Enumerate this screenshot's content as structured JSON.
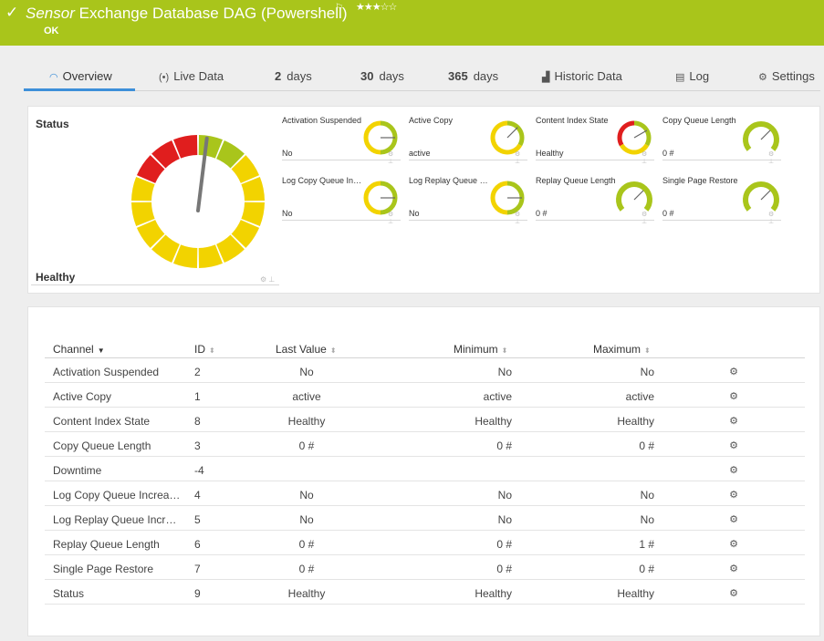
{
  "header": {
    "kind": "Sensor",
    "name": "Exchange Database DAG (Powershell)",
    "stars": "★★★☆☆",
    "status": "OK",
    "bg_color": "#a9c51b"
  },
  "tabs": [
    {
      "label": "Overview",
      "icon": "gauge-icon"
    },
    {
      "label": "Live Data",
      "icon": "broadcast-icon"
    },
    {
      "num": "2",
      "label": "days"
    },
    {
      "num": "30",
      "label": "days"
    },
    {
      "num": "365",
      "label": "days"
    },
    {
      "label": "Historic Data",
      "icon": "chart-icon"
    },
    {
      "label": "Log",
      "icon": "list-icon"
    },
    {
      "label": "Settings",
      "icon": "gear-icon"
    }
  ],
  "status_panel": {
    "label": "Status",
    "value": "Healthy"
  },
  "gauges": [
    {
      "name": "Activation Suspended",
      "value": "No",
      "type": "half"
    },
    {
      "name": "Active Copy",
      "value": "active",
      "type": "mid"
    },
    {
      "name": "Content Index State",
      "value": "Healthy",
      "type": "redyellow"
    },
    {
      "name": "Copy Queue Length",
      "value": "0 #",
      "type": "green"
    },
    {
      "name": "Log Copy Queue Increasing",
      "value": "No",
      "type": "half"
    },
    {
      "name": "Log Replay Queue Increasing",
      "value": "No",
      "type": "half"
    },
    {
      "name": "Replay Queue Length",
      "value": "0 #",
      "type": "green"
    },
    {
      "name": "Single Page Restore",
      "value": "0 #",
      "type": "green"
    }
  ],
  "table": {
    "headers": {
      "channel": "Channel",
      "id": "ID",
      "last": "Last Value",
      "min": "Minimum",
      "max": "Maximum"
    },
    "rows": [
      {
        "channel": "Activation Suspended",
        "id": "2",
        "last": "No",
        "min": "No",
        "max": "No"
      },
      {
        "channel": "Active Copy",
        "id": "1",
        "last": "active",
        "min": "active",
        "max": "active"
      },
      {
        "channel": "Content Index State",
        "id": "8",
        "last": "Healthy",
        "min": "Healthy",
        "max": "Healthy"
      },
      {
        "channel": "Copy Queue Length",
        "id": "3",
        "last": "0 #",
        "min": "0 #",
        "max": "0 #"
      },
      {
        "channel": "Downtime",
        "id": "-4",
        "last": "",
        "min": "",
        "max": ""
      },
      {
        "channel": "Log Copy Queue Increasing",
        "id": "4",
        "last": "No",
        "min": "No",
        "max": "No"
      },
      {
        "channel": "Log Replay Queue Increasing",
        "id": "5",
        "last": "No",
        "min": "No",
        "max": "No"
      },
      {
        "channel": "Replay Queue Length",
        "id": "6",
        "last": "0 #",
        "min": "0 #",
        "max": "1 #"
      },
      {
        "channel": "Single Page Restore",
        "id": "7",
        "last": "0 #",
        "min": "0 #",
        "max": "0 #"
      },
      {
        "channel": "Status",
        "id": "9",
        "last": "Healthy",
        "min": "Healthy",
        "max": "Healthy"
      }
    ]
  },
  "colors": {
    "red": "#e01e1e",
    "yellow": "#f2d300",
    "green": "#a9c51b",
    "accent": "#3d8fd9"
  }
}
